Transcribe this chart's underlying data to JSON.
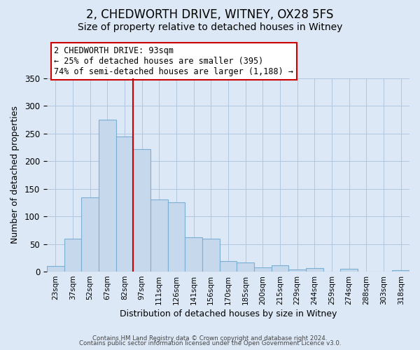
{
  "title": "2, CHEDWORTH DRIVE, WITNEY, OX28 5FS",
  "subtitle": "Size of property relative to detached houses in Witney",
  "xlabel": "Distribution of detached houses by size in Witney",
  "ylabel": "Number of detached properties",
  "bar_color": "#c5d8ec",
  "bar_edge_color": "#7bafd4",
  "categories": [
    "23sqm",
    "37sqm",
    "52sqm",
    "67sqm",
    "82sqm",
    "97sqm",
    "111sqm",
    "126sqm",
    "141sqm",
    "156sqm",
    "170sqm",
    "185sqm",
    "200sqm",
    "215sqm",
    "229sqm",
    "244sqm",
    "259sqm",
    "274sqm",
    "288sqm",
    "303sqm",
    "318sqm"
  ],
  "values": [
    10,
    60,
    135,
    275,
    245,
    222,
    130,
    125,
    62,
    60,
    19,
    16,
    8,
    11,
    4,
    6,
    0,
    5,
    0,
    0,
    2
  ],
  "vline_x": 5,
  "vline_color": "#cc0000",
  "annotation_text": "2 CHEDWORTH DRIVE: 93sqm\n← 25% of detached houses are smaller (395)\n74% of semi-detached houses are larger (1,188) →",
  "ylim": [
    0,
    350
  ],
  "yticks": [
    0,
    50,
    100,
    150,
    200,
    250,
    300,
    350
  ],
  "footer1": "Contains HM Land Registry data © Crown copyright and database right 2024.",
  "footer2": "Contains public sector information licensed under the Open Government Licence v3.0.",
  "bg_color": "#dce8f5",
  "plot_bg_color": "#dce8f5",
  "title_fontsize": 12,
  "subtitle_fontsize": 10,
  "annotation_box_color": "#ffffff",
  "annotation_box_edge": "#cc0000"
}
